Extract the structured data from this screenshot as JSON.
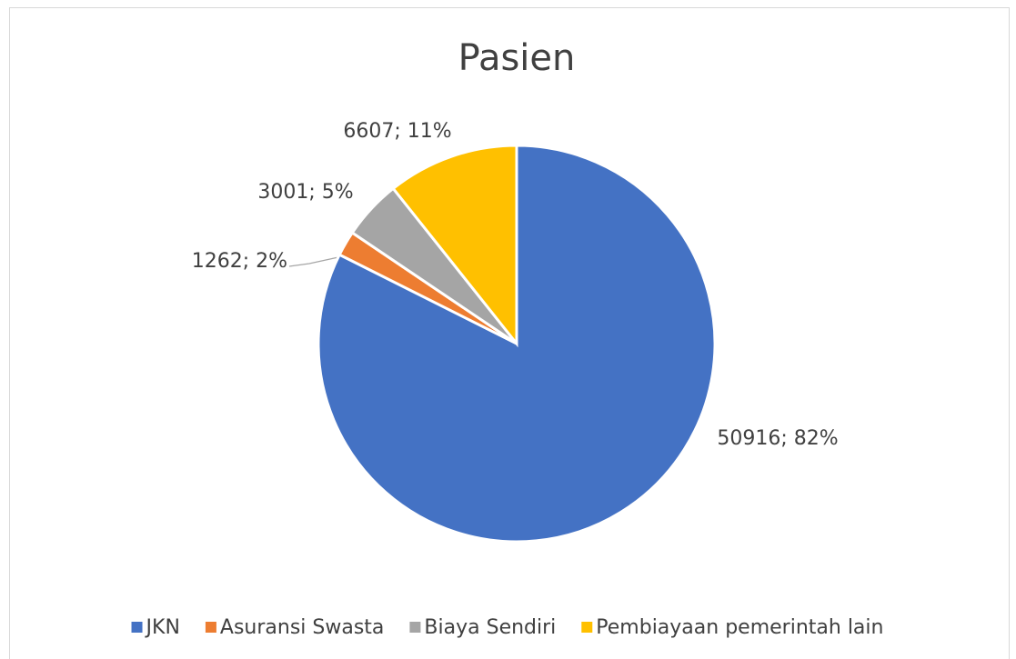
{
  "chart_data": {
    "type": "pie",
    "title": "Pasien",
    "categories": [
      "JKN",
      "Asuransi Swasta",
      "Biaya Sendiri",
      "Pembiayaan pemerintah lain"
    ],
    "values": [
      50916,
      1262,
      3001,
      6607
    ],
    "value_labels": [
      "50916; 82%",
      "1262; 2%",
      "3001; 5%",
      "6607; 11%"
    ],
    "colors": [
      "#4472c4",
      "#ed7d31",
      "#a5a5a5",
      "#ffc000"
    ],
    "legend": "bottom"
  }
}
